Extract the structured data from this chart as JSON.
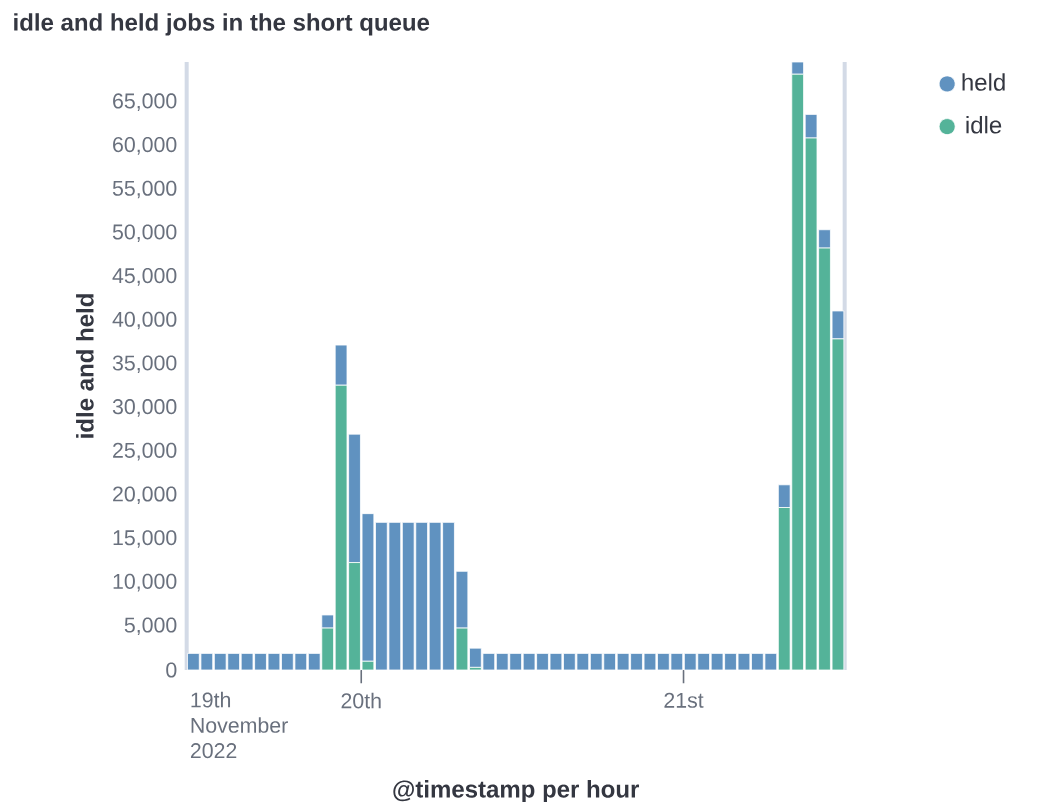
{
  "chart_data": {
    "type": "bar",
    "title": "idle and held jobs in the short queue",
    "xlabel": "@timestamp per hour",
    "ylabel": "idle and held",
    "stacked": true,
    "legend": "top right",
    "x": [
      "2022-11-19T11:30",
      "2022-11-19T12:30",
      "2022-11-19T13:30",
      "2022-11-19T14:30",
      "2022-11-19T15:30",
      "2022-11-19T16:30",
      "2022-11-19T17:30",
      "2022-11-19T18:30",
      "2022-11-19T19:30",
      "2022-11-19T20:30",
      "2022-11-19T21:30",
      "2022-11-19T22:30",
      "2022-11-19T23:30",
      "2022-11-20T00:30",
      "2022-11-20T01:30",
      "2022-11-20T02:30",
      "2022-11-20T03:30",
      "2022-11-20T04:30",
      "2022-11-20T05:30",
      "2022-11-20T06:30",
      "2022-11-20T07:30",
      "2022-11-20T08:30",
      "2022-11-20T09:30",
      "2022-11-20T10:30",
      "2022-11-20T11:30",
      "2022-11-20T12:30",
      "2022-11-20T13:30",
      "2022-11-20T14:30",
      "2022-11-20T15:30",
      "2022-11-20T16:30",
      "2022-11-20T17:30",
      "2022-11-20T18:30",
      "2022-11-20T19:30",
      "2022-11-20T20:30",
      "2022-11-20T21:30",
      "2022-11-20T22:30",
      "2022-11-20T23:30",
      "2022-11-21T00:30",
      "2022-11-21T01:30",
      "2022-11-21T02:30",
      "2022-11-21T03:30",
      "2022-11-21T04:30",
      "2022-11-21T05:30",
      "2022-11-21T06:30",
      "2022-11-21T07:30",
      "2022-11-21T08:30",
      "2022-11-21T09:30",
      "2022-11-21T10:30",
      "2022-11-21T11:30"
    ],
    "series": [
      {
        "name": "idle",
        "color": "#54b399",
        "values": [
          0,
          0,
          0,
          0,
          0,
          0,
          0,
          0,
          0,
          0,
          4800,
          32600,
          12300,
          1000,
          0,
          0,
          0,
          0,
          0,
          0,
          4800,
          300,
          0,
          0,
          0,
          0,
          0,
          0,
          0,
          0,
          0,
          0,
          0,
          0,
          0,
          0,
          0,
          0,
          0,
          0,
          0,
          0,
          0,
          0,
          18600,
          68200,
          60900,
          48300,
          37900
        ]
      },
      {
        "name": "held",
        "color": "#6092c0",
        "values": [
          1900,
          1900,
          1900,
          1900,
          1900,
          1900,
          1900,
          1900,
          1900,
          1900,
          1500,
          4600,
          14700,
          16900,
          16900,
          16900,
          16900,
          16900,
          16900,
          16900,
          6500,
          2200,
          1900,
          1900,
          1900,
          1900,
          1900,
          1900,
          1900,
          1900,
          1900,
          1900,
          1900,
          1900,
          1900,
          1900,
          1900,
          1900,
          1900,
          1900,
          1900,
          1900,
          1900,
          1900,
          2600,
          1400,
          2700,
          2100,
          3200
        ]
      }
    ],
    "xlim": [
      "2022-11-19T11:00",
      "2022-11-21T12:00"
    ],
    "xticks": [
      {
        "value": "2022-11-20T00:00",
        "label": "20th"
      },
      {
        "value": "2022-11-21T00:00",
        "label": "21st"
      }
    ],
    "annotations": [
      "19th November 2022"
    ],
    "ylim": [
      0,
      69600
    ],
    "yticks": [
      0,
      {
        "value": 5000,
        "label": "5,000"
      },
      {
        "value": 10000,
        "label": "10,000"
      },
      {
        "value": 15000,
        "label": "15,000"
      },
      {
        "value": 20000,
        "label": "20,000"
      },
      {
        "value": 25000,
        "label": "25,000"
      },
      {
        "value": 30000,
        "label": "30,000"
      },
      {
        "value": 35000,
        "label": "35,000"
      },
      {
        "value": 40000,
        "label": "40,000"
      },
      {
        "value": 45000,
        "label": "45,000"
      },
      {
        "value": 50000,
        "label": "50,000"
      },
      {
        "value": 55000,
        "label": "55,000"
      },
      {
        "value": 60000,
        "label": "60,000"
      },
      {
        "value": 65000,
        "label": "65,000"
      }
    ],
    "ref_lines": [
      {
        "axis": "x",
        "value": "2022-11-21T12:00",
        "color": "#d3dae6"
      }
    ]
  }
}
